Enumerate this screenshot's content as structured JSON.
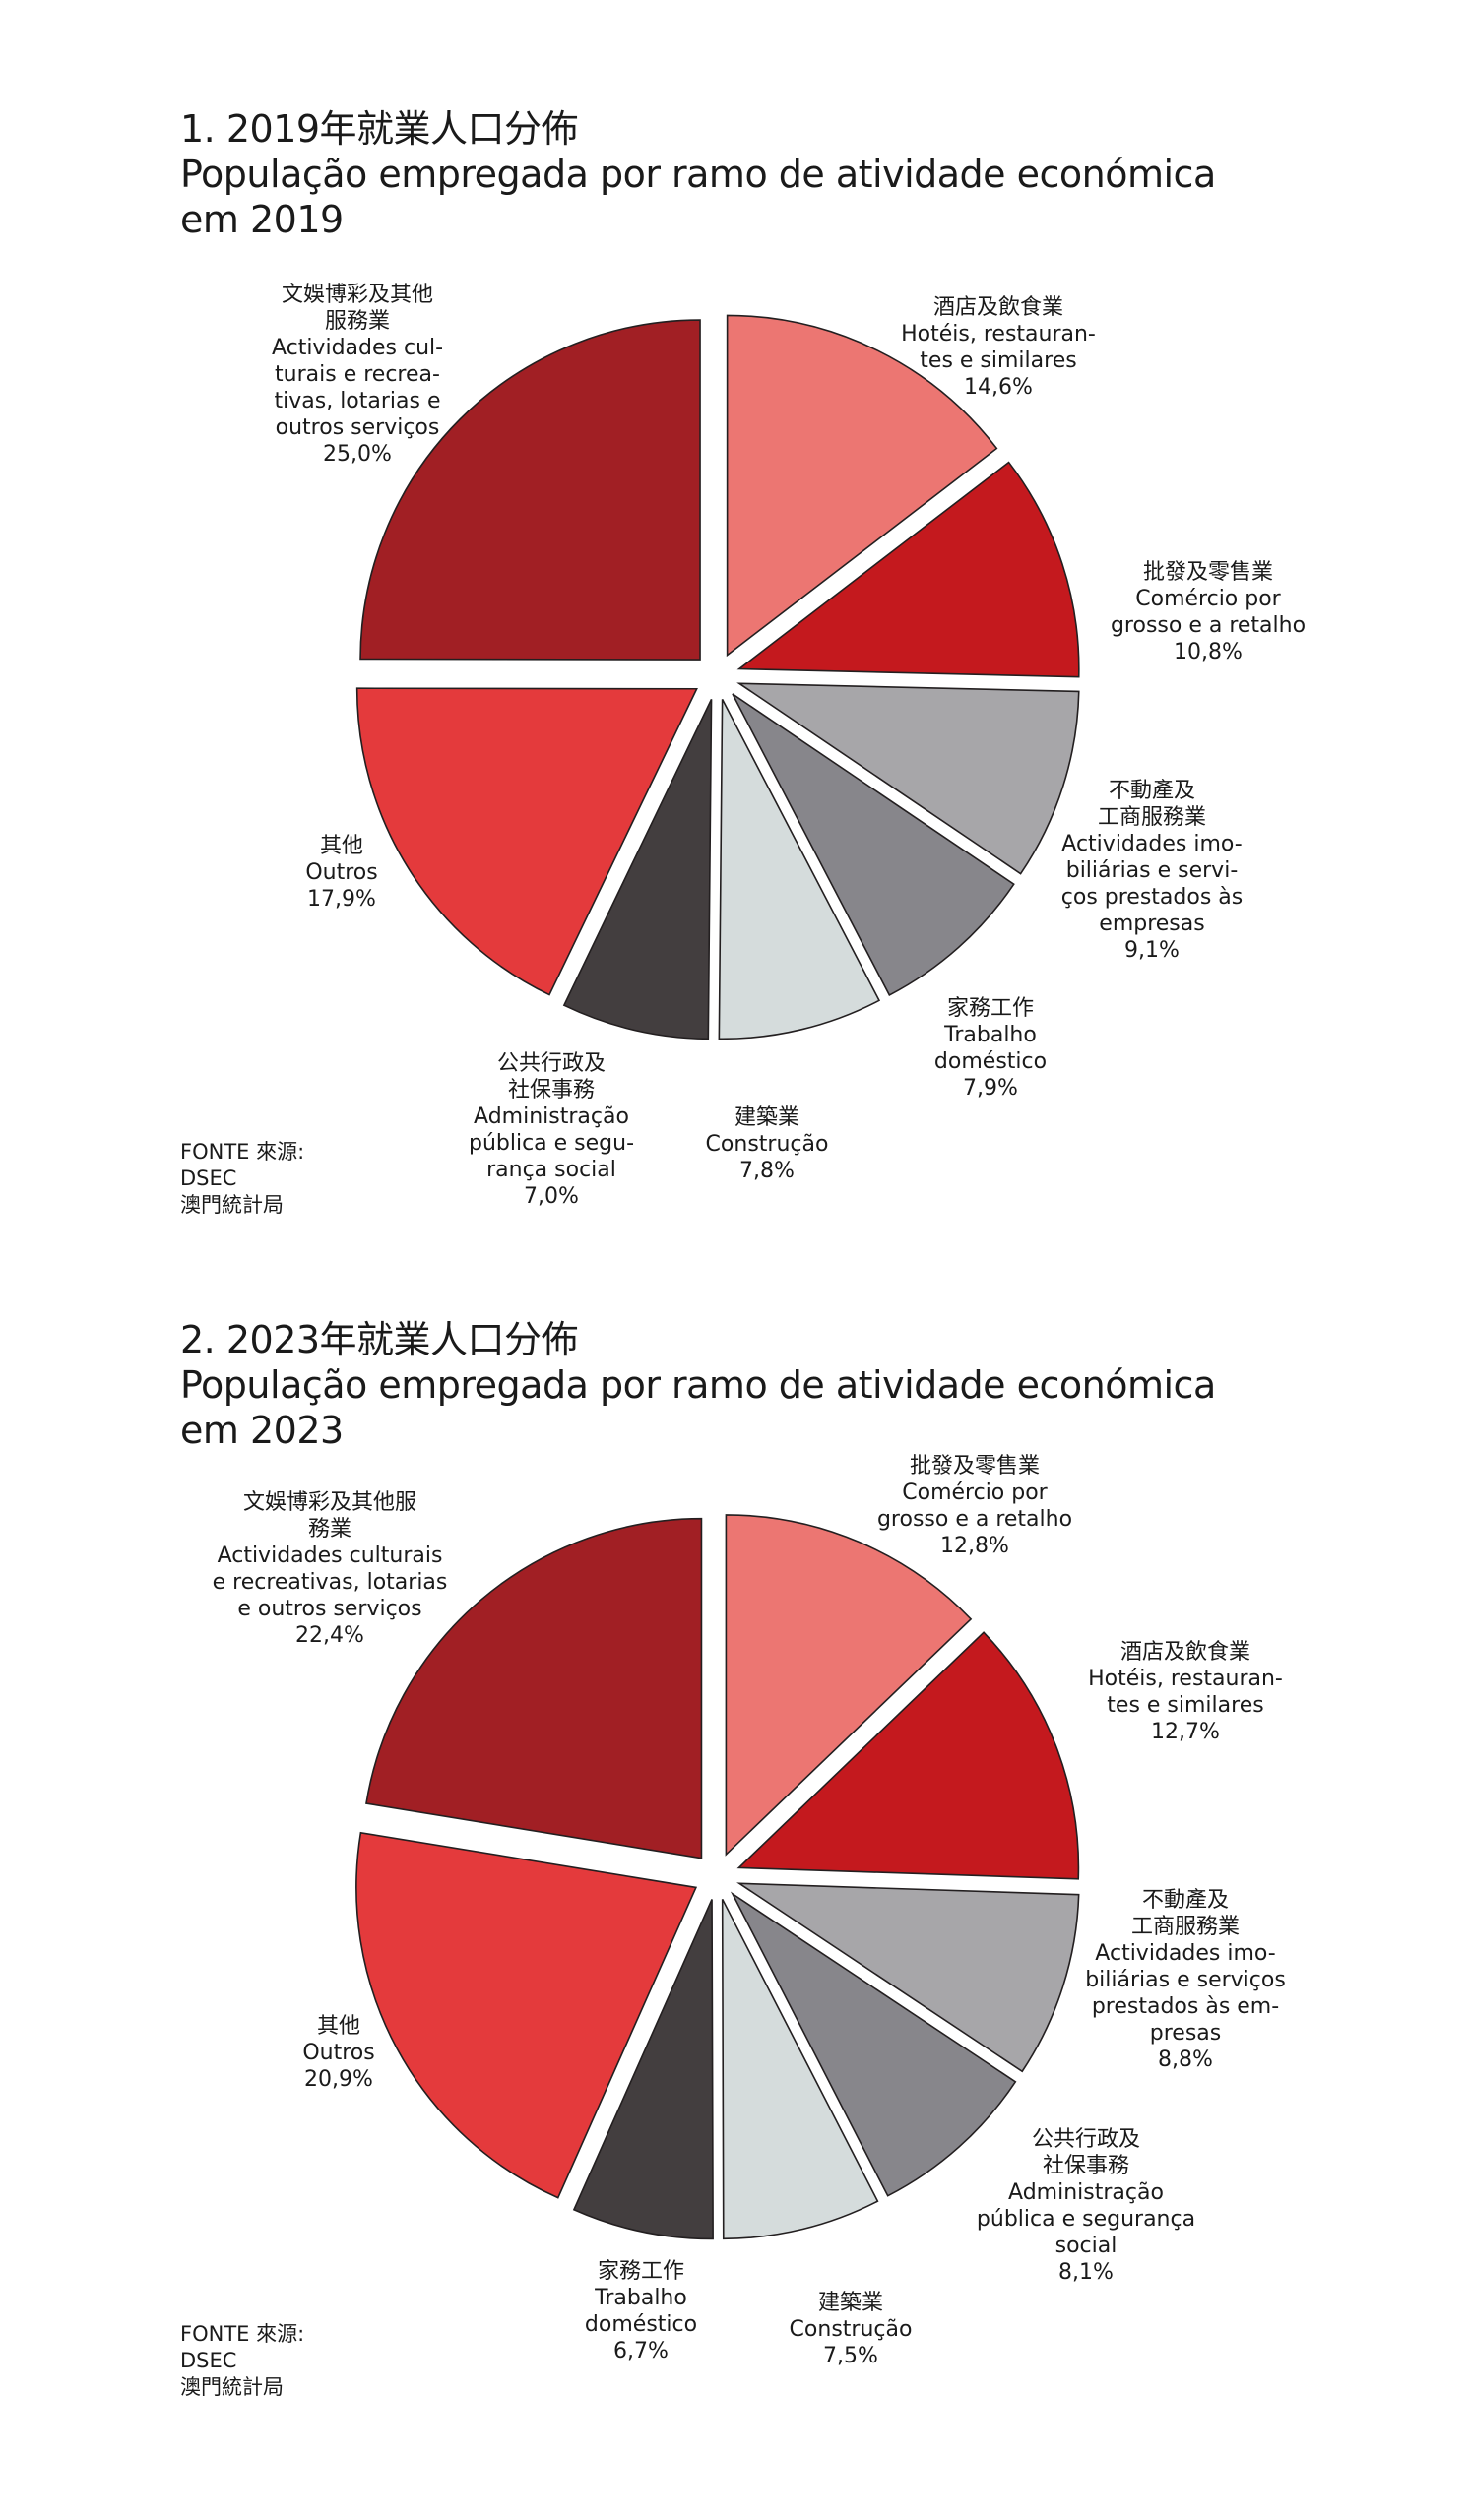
{
  "chart_data": [
    {
      "type": "pie",
      "title_line1": "1. 2019年就業人口分佈",
      "title_line2": "População empregada por ramo de atividade económica",
      "title_line3": "em 2019",
      "source": [
        "FONTE 來源:",
        "DSEC",
        "澳門統計局"
      ],
      "slices": [
        {
          "zh": [
            "酒店及飲食業"
          ],
          "pt": [
            "Hotéis, restauran-",
            "tes e similares"
          ],
          "value": 14.6,
          "label_value": "14,6%",
          "color": "#ec7672"
        },
        {
          "zh": [
            "批發及零售業"
          ],
          "pt": [
            "Comércio por",
            "grosso e a retalho"
          ],
          "value": 10.8,
          "label_value": "10,8%",
          "color": "#c4191e"
        },
        {
          "zh": [
            "不動產及",
            "工商服務業"
          ],
          "pt": [
            "Actividades imo-",
            "biliárias e servi-",
            "ços prestados às",
            "empresas"
          ],
          "value": 9.1,
          "label_value": "9,1%",
          "color": "#a7a6a9"
        },
        {
          "zh": [
            "家務工作"
          ],
          "pt": [
            "Trabalho",
            "doméstico"
          ],
          "value": 7.9,
          "label_value": "7,9%",
          "color": "#87868b"
        },
        {
          "zh": [
            "建築業"
          ],
          "pt": [
            "Construção"
          ],
          "value": 7.8,
          "label_value": "7,8%",
          "color": "#d5dcdc"
        },
        {
          "zh": [
            "公共行政及",
            "社保事務"
          ],
          "pt": [
            "Administração",
            "pública e segu-",
            "rança social"
          ],
          "value": 7.0,
          "label_value": "7,0%",
          "color": "#433e3f"
        },
        {
          "zh": [
            "其他"
          ],
          "pt": [
            "Outros"
          ],
          "value": 17.9,
          "label_value": "17,9%",
          "color": "#e43a3c"
        },
        {
          "zh": [
            "文娛博彩及其他",
            "服務業"
          ],
          "pt": [
            "Actividades cul-",
            "turais e recrea-",
            "tivas, lotarias e",
            "outros serviços"
          ],
          "value": 25.0,
          "label_value": "25,0%",
          "color": "#a11f24"
        }
      ]
    },
    {
      "type": "pie",
      "title_line1": "2. 2023年就業人口分佈",
      "title_line2": "População empregada por ramo de atividade económica",
      "title_line3": "em 2023",
      "source": [
        "FONTE 來源:",
        "DSEC",
        "澳門統計局"
      ],
      "slices": [
        {
          "zh": [
            "批發及零售業"
          ],
          "pt": [
            "Comércio por",
            "grosso e a retalho"
          ],
          "value": 12.8,
          "label_value": "12,8%",
          "color": "#ec7672"
        },
        {
          "zh": [
            "酒店及飲食業"
          ],
          "pt": [
            "Hotéis, restauran-",
            "tes e similares"
          ],
          "value": 12.7,
          "label_value": "12,7%",
          "color": "#c4191e"
        },
        {
          "zh": [
            "不動產及",
            "工商服務業"
          ],
          "pt": [
            "Actividades imo-",
            "biliárias e serviços",
            "prestados às em-",
            "presas"
          ],
          "value": 8.8,
          "label_value": "8,8%",
          "color": "#a7a6a9"
        },
        {
          "zh": [
            "公共行政及",
            "社保事務"
          ],
          "pt": [
            "Administração",
            "pública e segurança",
            "social"
          ],
          "value": 8.1,
          "label_value": "8,1%",
          "color": "#87868b"
        },
        {
          "zh": [
            "建築業"
          ],
          "pt": [
            "Construção"
          ],
          "value": 7.5,
          "label_value": "7,5%",
          "color": "#d5dcdc"
        },
        {
          "zh": [
            "家務工作"
          ],
          "pt": [
            "Trabalho",
            "doméstico"
          ],
          "value": 6.7,
          "label_value": "6,7%",
          "color": "#433e3f"
        },
        {
          "zh": [
            "其他"
          ],
          "pt": [
            "Outros"
          ],
          "value": 20.9,
          "label_value": "20,9%",
          "color": "#e43a3c"
        },
        {
          "zh": [
            "文娛博彩及其他服",
            "務業"
          ],
          "pt": [
            "Actividades culturais",
            "e recreativas, lotarias",
            "e outros serviços"
          ],
          "value": 22.4,
          "label_value": "22,4%",
          "color": "#a11f24"
        }
      ]
    }
  ]
}
